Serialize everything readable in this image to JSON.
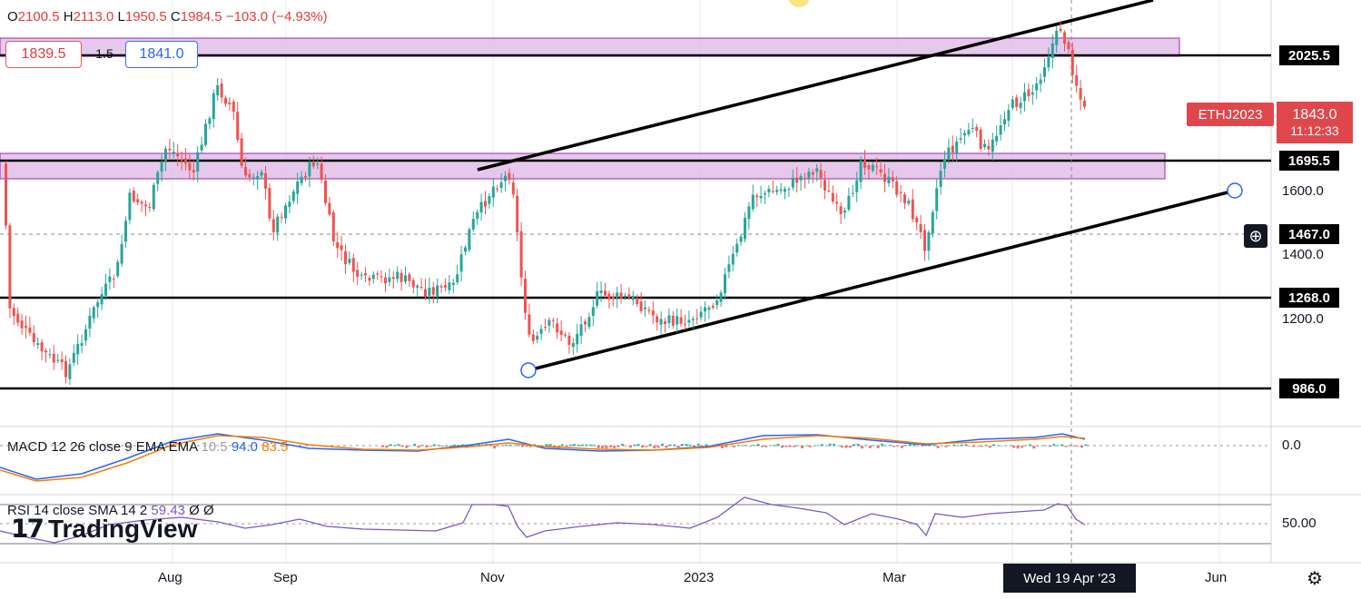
{
  "ohlc": {
    "o": "O",
    "o_val": "2100.5",
    "h": "H",
    "h_val": "2113.0",
    "l": "L",
    "l_val": "1950.5",
    "c": "C",
    "c_val": "1984.5",
    "chg": "−103.0 (−4.93%)"
  },
  "trade": {
    "sell": "1839.5",
    "spread": "1.5",
    "buy": "1841.0"
  },
  "symbol": {
    "name": "ETHJ2023",
    "price": "1843.0",
    "countdown": "11:12:33"
  },
  "price_labels": {
    "l2025": "2025.5",
    "l1695": "1695.5",
    "l1467": "1467.0",
    "l1268": "1268.0",
    "l986": "986.0"
  },
  "price_axis": {
    "t1600": "1600.0",
    "t1400": "1400.0",
    "t1200": "1200.0"
  },
  "macd": {
    "label": "MACD 12 26 close 9 EMA EMA",
    "v1": "10.5",
    "v2": "94.0",
    "v3": "83.5",
    "axis": "0.0"
  },
  "rsi": {
    "label": "RSI 14 close SMA 14 2",
    "value": "59.43",
    "n1": "Ø",
    "n2": "Ø",
    "axis": "50.00"
  },
  "time_axis": {
    "aug": "Aug",
    "sep": "Sep",
    "nov": "Nov",
    "y2023": "2023",
    "mar": "Mar",
    "jun": "Jun",
    "selected": "Wed 19 Apr '23"
  },
  "branding": {
    "logo": "TradingView"
  },
  "icons": {
    "settings": "gear-icon",
    "crosshair": "plus-circle-icon"
  },
  "colors": {
    "up": "#26a69a",
    "down": "#ef5350",
    "zone": "#e1bee7",
    "macd": "#2962ff",
    "signal": "#f57c00",
    "rsi": "#7e57c2"
  }
}
